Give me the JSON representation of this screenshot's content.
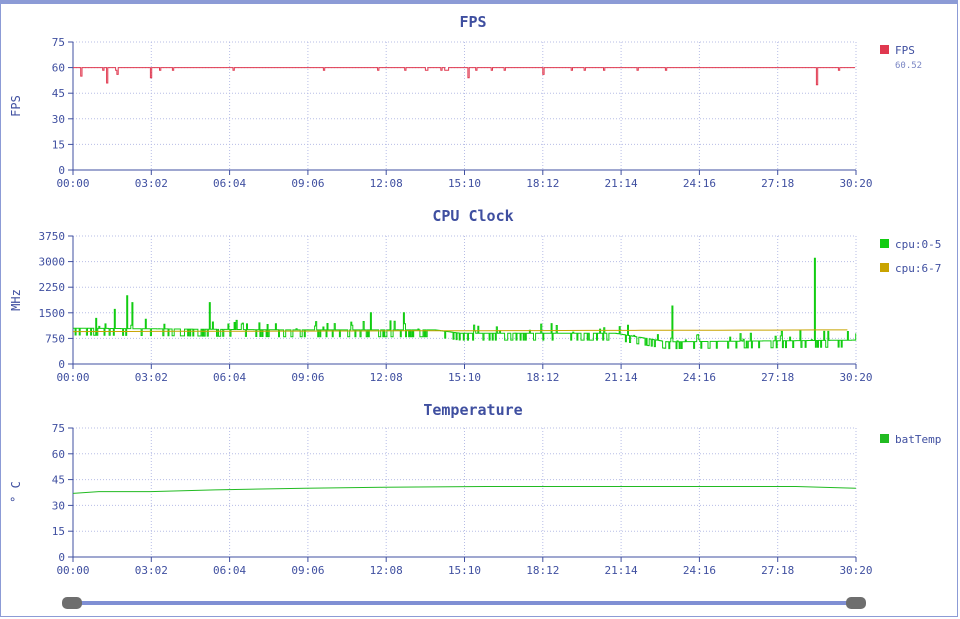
{
  "x_ticks": [
    "00:00",
    "03:02",
    "06:04",
    "09:06",
    "12:08",
    "15:10",
    "18:12",
    "21:14",
    "24:16",
    "27:18",
    "30:20"
  ],
  "colors": {
    "fps": "#e0384f",
    "cpu05": "#11cc11",
    "cpu67": "#c8a300",
    "temp": "#22bb22",
    "axis": "#3f4fa0"
  },
  "chart_data": [
    {
      "type": "line",
      "title": "FPS",
      "ylabel": "FPS",
      "ylim": [
        0,
        75
      ],
      "y_ticks": [
        0,
        15,
        30,
        45,
        60,
        75
      ],
      "x": [
        "00:00",
        "03:02",
        "06:04",
        "09:06",
        "12:08",
        "15:10",
        "18:12",
        "21:14",
        "24:16",
        "27:18",
        "30:20"
      ],
      "series": [
        {
          "name": "FPS",
          "color": "#e0384f",
          "current": "60.52",
          "baseline": 60,
          "dips": [
            [
              0.3,
              55
            ],
            [
              1.3,
              51
            ],
            [
              1.7,
              56
            ],
            [
              3.0,
              54
            ],
            [
              15.3,
              54
            ],
            [
              18.2,
              56
            ],
            [
              28.8,
              50
            ]
          ]
        }
      ],
      "legend": "right"
    },
    {
      "type": "line",
      "title": "CPU Clock",
      "ylabel": "MHz",
      "ylim": [
        0,
        3750
      ],
      "y_ticks": [
        0,
        750,
        1500,
        2250,
        3000,
        3750
      ],
      "x": [
        "00:00",
        "03:02",
        "06:04",
        "09:06",
        "12:08",
        "15:10",
        "18:12",
        "21:14",
        "24:16",
        "27:18",
        "30:20"
      ],
      "series": [
        {
          "name": "cpu:0-5",
          "color": "#11cc11",
          "profile": [
            [
              0,
              1050
            ],
            [
              8,
              1000
            ],
            [
              14,
              1000
            ],
            [
              15,
              900
            ],
            [
              21,
              900
            ],
            [
              23,
              650
            ],
            [
              30.33,
              700
            ]
          ],
          "spikes": [
            [
              1.6,
              1600
            ],
            [
              2.1,
              2000
            ],
            [
              2.3,
              1800
            ],
            [
              5.3,
              1800
            ],
            [
              11.5,
              1500
            ],
            [
              12.8,
              1500
            ],
            [
              23.2,
              1700
            ],
            [
              28.7,
              3100
            ]
          ]
        },
        {
          "name": "cpu:6-7",
          "color": "#c8a300",
          "profile": [
            [
              0,
              950
            ],
            [
              30.33,
              1000
            ]
          ]
        }
      ],
      "legend": "right"
    },
    {
      "type": "line",
      "title": "Temperature",
      "ylabel": "° C",
      "ylim": [
        0,
        75
      ],
      "y_ticks": [
        0,
        15,
        30,
        45,
        60,
        75
      ],
      "x": [
        "00:00",
        "03:02",
        "06:04",
        "09:06",
        "12:08",
        "15:10",
        "18:12",
        "21:14",
        "24:16",
        "27:18",
        "30:20"
      ],
      "series": [
        {
          "name": "batTemp",
          "color": "#22bb22",
          "points": [
            [
              0,
              37
            ],
            [
              1,
              38
            ],
            [
              3,
              38
            ],
            [
              5.5,
              39
            ],
            [
              9,
              40
            ],
            [
              12,
              40.5
            ],
            [
              16,
              41
            ],
            [
              20,
              41
            ],
            [
              25,
              41
            ],
            [
              28,
              41
            ],
            [
              30.33,
              40
            ]
          ]
        }
      ],
      "legend": "right"
    }
  ]
}
